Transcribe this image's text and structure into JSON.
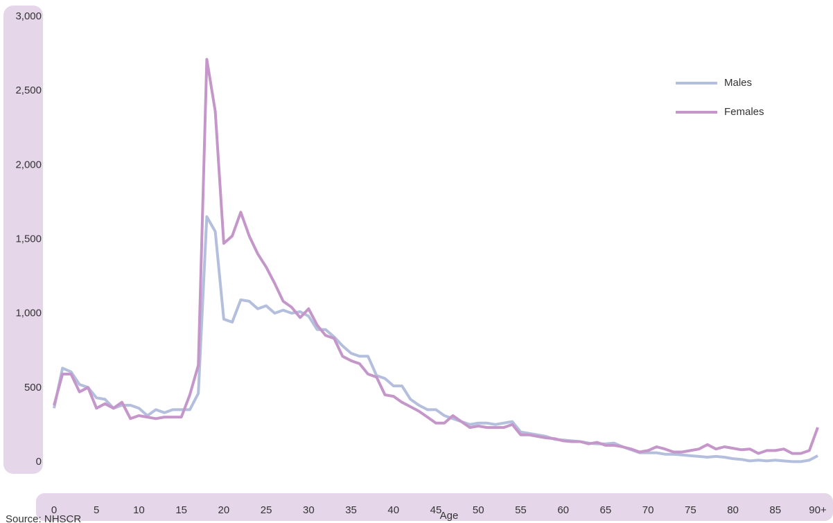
{
  "chart_data": {
    "type": "line",
    "x": [
      0,
      1,
      2,
      3,
      4,
      5,
      6,
      7,
      8,
      9,
      10,
      11,
      12,
      13,
      14,
      15,
      16,
      17,
      18,
      19,
      20,
      21,
      22,
      23,
      24,
      25,
      26,
      27,
      28,
      29,
      30,
      31,
      32,
      33,
      34,
      35,
      36,
      37,
      38,
      39,
      40,
      41,
      42,
      43,
      44,
      45,
      46,
      47,
      48,
      49,
      50,
      51,
      52,
      53,
      54,
      55,
      56,
      57,
      58,
      59,
      60,
      61,
      62,
      63,
      64,
      65,
      66,
      67,
      68,
      69,
      70,
      71,
      72,
      73,
      74,
      75,
      76,
      77,
      78,
      79,
      80,
      81,
      82,
      83,
      84,
      85,
      86,
      87,
      88,
      89,
      90
    ],
    "series": [
      {
        "name": "Males",
        "color": "#b4bedd",
        "values": [
          400,
          670,
          645,
          560,
          540,
          470,
          460,
          400,
          420,
          420,
          400,
          350,
          390,
          370,
          390,
          390,
          390,
          500,
          1690,
          1590,
          1000,
          980,
          1130,
          1120,
          1070,
          1090,
          1040,
          1060,
          1040,
          1050,
          1020,
          930,
          930,
          880,
          820,
          770,
          750,
          750,
          620,
          600,
          550,
          550,
          460,
          420,
          390,
          390,
          350,
          330,
          310,
          290,
          300,
          300,
          290,
          300,
          310,
          240,
          230,
          220,
          210,
          190,
          185,
          180,
          175,
          165,
          160,
          160,
          165,
          140,
          120,
          100,
          100,
          100,
          90,
          90,
          85,
          80,
          75,
          70,
          75,
          70,
          60,
          55,
          45,
          50,
          45,
          50,
          45,
          40,
          40,
          50,
          80
        ]
      },
      {
        "name": "Females",
        "color": "#c496c9",
        "values": [
          420,
          630,
          630,
          510,
          540,
          400,
          430,
          400,
          440,
          330,
          350,
          340,
          330,
          340,
          340,
          340,
          490,
          690,
          2750,
          2400,
          1510,
          1560,
          1720,
          1560,
          1440,
          1350,
          1240,
          1120,
          1080,
          1010,
          1070,
          960,
          890,
          870,
          750,
          720,
          700,
          630,
          610,
          490,
          480,
          440,
          410,
          380,
          340,
          300,
          300,
          350,
          310,
          270,
          280,
          270,
          270,
          270,
          290,
          220,
          220,
          210,
          200,
          195,
          180,
          175,
          175,
          160,
          170,
          150,
          150,
          140,
          125,
          105,
          115,
          140,
          125,
          105,
          105,
          115,
          125,
          155,
          125,
          140,
          130,
          120,
          125,
          95,
          115,
          115,
          125,
          95,
          95,
          115,
          270
        ]
      }
    ],
    "xlabel": "Age",
    "xlim": [
      0,
      90
    ],
    "xticks": [
      0,
      5,
      10,
      15,
      20,
      25,
      30,
      35,
      40,
      45,
      50,
      55,
      60,
      65,
      70,
      75,
      80,
      85,
      {
        "value": 90,
        "label": "90+"
      }
    ],
    "ylim": [
      0,
      3000
    ],
    "yticks": [
      0,
      500,
      1000,
      1500,
      2000,
      2500,
      {
        "value": 3000,
        "label": "3,000"
      }
    ],
    "ytick_labels": [
      "0",
      "500",
      "1,000",
      "1,500",
      "2,000",
      "2,500",
      "3,000"
    ],
    "source": "Source: NHSCR",
    "legend": "upper right"
  }
}
